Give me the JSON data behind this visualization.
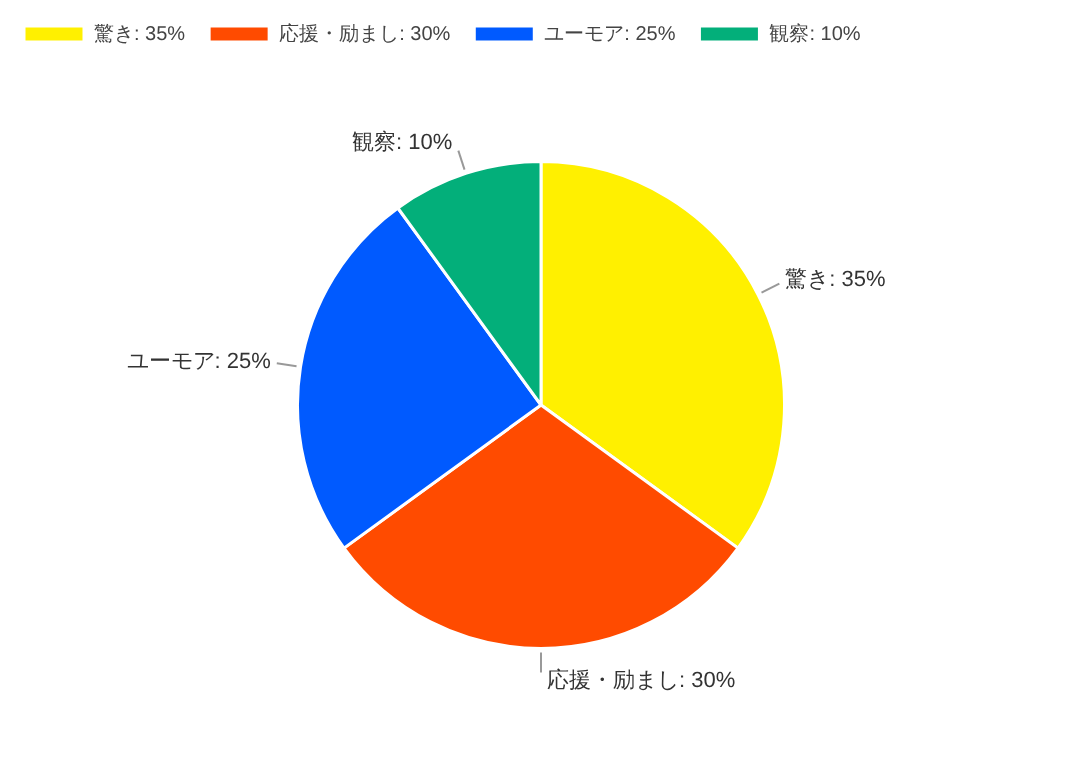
{
  "chart_data": {
    "type": "pie",
    "categories": [
      "驚き",
      "応援・励まし",
      "ユーモア",
      "観察"
    ],
    "values": [
      35,
      30,
      25,
      10
    ],
    "value_labels": [
      "35%",
      "30%",
      "25%",
      "10%"
    ],
    "colors": [
      "#fff000",
      "#ff4b00",
      "#005aff",
      "#03af7a"
    ],
    "legend": "top left"
  }
}
